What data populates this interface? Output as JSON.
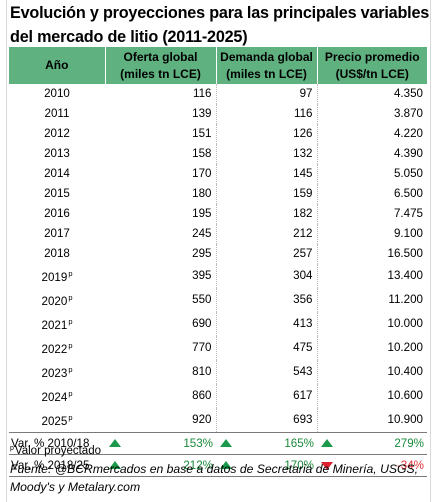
{
  "title": "Evolución y proyecciones para las principales variables del mercado de litio (2011-2025)",
  "columns": [
    {
      "line1": "Año",
      "line2": ""
    },
    {
      "line1": "Oferta global",
      "line2": "(miles tn LCE)"
    },
    {
      "line1": "Demanda global",
      "line2": "(miles tn LCE)"
    },
    {
      "line1": "Precio promedio",
      "line2": "(US$/tn LCE)"
    }
  ],
  "rows": [
    {
      "year": "2010",
      "projected": "",
      "oferta": "116",
      "demanda": "97",
      "precio": "4.350"
    },
    {
      "year": "2011",
      "projected": "",
      "oferta": "139",
      "demanda": "116",
      "precio": "3.870"
    },
    {
      "year": "2012",
      "projected": "",
      "oferta": "151",
      "demanda": "126",
      "precio": "4.220"
    },
    {
      "year": "2013",
      "projected": "",
      "oferta": "158",
      "demanda": "132",
      "precio": "4.390"
    },
    {
      "year": "2014",
      "projected": "",
      "oferta": "170",
      "demanda": "145",
      "precio": "5.050"
    },
    {
      "year": "2015",
      "projected": "",
      "oferta": "180",
      "demanda": "159",
      "precio": "6.500"
    },
    {
      "year": "2016",
      "projected": "",
      "oferta": "195",
      "demanda": "182",
      "precio": "7.475"
    },
    {
      "year": "2017",
      "projected": "",
      "oferta": "245",
      "demanda": "212",
      "precio": "9.100"
    },
    {
      "year": "2018",
      "projected": "",
      "oferta": "295",
      "demanda": "257",
      "precio": "16.500"
    },
    {
      "year": "2019",
      "projected": "p",
      "oferta": "395",
      "demanda": "304",
      "precio": "13.400"
    },
    {
      "year": "2020",
      "projected": "p",
      "oferta": "550",
      "demanda": "356",
      "precio": "11.200"
    },
    {
      "year": "2021",
      "projected": "p",
      "oferta": "690",
      "demanda": "413",
      "precio": "10.000"
    },
    {
      "year": "2022",
      "projected": "p",
      "oferta": "770",
      "demanda": "475",
      "precio": "10.200"
    },
    {
      "year": "2023",
      "projected": "p",
      "oferta": "810",
      "demanda": "543",
      "precio": "10.400"
    },
    {
      "year": "2024",
      "projected": "p",
      "oferta": "860",
      "demanda": "617",
      "precio": "10.600"
    },
    {
      "year": "2025",
      "projected": "p",
      "oferta": "920",
      "demanda": "693",
      "precio": "10.900"
    }
  ],
  "variations": [
    {
      "label": "Var. % 2010/18",
      "oferta": {
        "value": "153%",
        "direction": "up"
      },
      "demanda": {
        "value": "165%",
        "direction": "up"
      },
      "precio": {
        "value": "279%",
        "direction": "up"
      }
    },
    {
      "label": "Var. % 2018/25",
      "oferta": {
        "value": "212%",
        "direction": "up"
      },
      "demanda": {
        "value": "170%",
        "direction": "up"
      },
      "precio": {
        "value": "-34%",
        "direction": "down"
      }
    }
  ],
  "note": {
    "marker": "p",
    "text": "Valor proyectado"
  },
  "source": "Fuente: @BCRmercados en base a datos de Secretaria de Minería, USGS, Moody's y Metalary.com",
  "colors": {
    "header": "#5fb27f",
    "positive": "#1a8a3a",
    "negative": "#e0303a"
  }
}
